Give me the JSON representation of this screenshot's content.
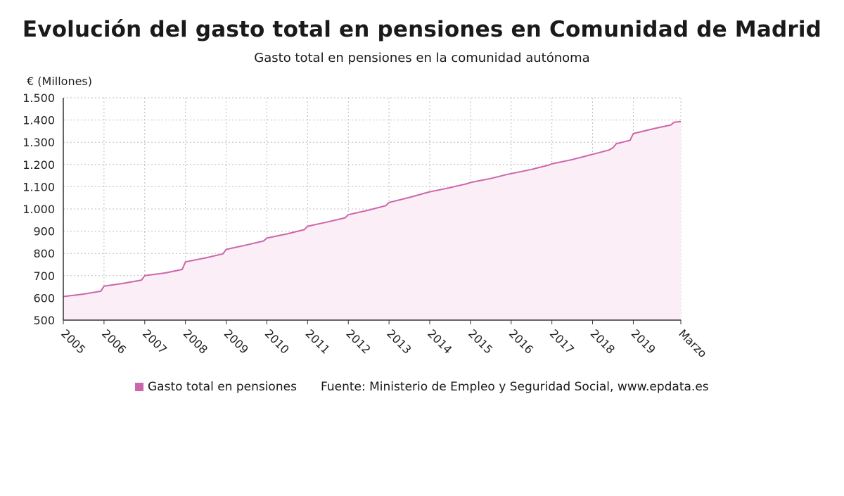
{
  "chart_data": {
    "type": "area",
    "title": "Evolución del gasto total en pensiones en Comunidad de Madrid",
    "subtitle": "Gasto total en pensiones en la comunidad autónoma",
    "ylabel": "€ (Millones)",
    "ylim": [
      500,
      1500
    ],
    "yticks": [
      500,
      600,
      700,
      800,
      900,
      1000,
      1100,
      1200,
      1300,
      1400,
      1500
    ],
    "ytick_labels": [
      "500",
      "600",
      "700",
      "800",
      "900",
      "1.000",
      "1.100",
      "1.200",
      "1.300",
      "1.400",
      "1.500"
    ],
    "xticks": [
      2005,
      2006,
      2007,
      2008,
      2009,
      2010,
      2011,
      2012,
      2013,
      2014,
      2015,
      2016,
      2017,
      2018,
      2019,
      2020.167
    ],
    "xtick_labels": [
      "2005",
      "2006",
      "2007",
      "2008",
      "2009",
      "2010",
      "2011",
      "2012",
      "2013",
      "2014",
      "2015",
      "2016",
      "2017",
      "2018",
      "2019",
      "Marzo"
    ],
    "xlim": [
      2005,
      2020.167
    ],
    "grid": true,
    "color": "#cc66aa",
    "fill_color": "#fbeef6",
    "series": [
      {
        "name": "Gasto total en pensiones",
        "points": [
          [
            2005.0,
            606
          ],
          [
            2005.5,
            617
          ],
          [
            2005.92,
            630
          ],
          [
            2006.0,
            653
          ],
          [
            2006.5,
            666
          ],
          [
            2006.92,
            680
          ],
          [
            2007.0,
            700
          ],
          [
            2007.5,
            712
          ],
          [
            2007.92,
            728
          ],
          [
            2008.0,
            762
          ],
          [
            2008.5,
            780
          ],
          [
            2008.92,
            798
          ],
          [
            2009.0,
            818
          ],
          [
            2009.5,
            838
          ],
          [
            2009.92,
            856
          ],
          [
            2010.0,
            869
          ],
          [
            2010.5,
            888
          ],
          [
            2010.92,
            907
          ],
          [
            2011.0,
            922
          ],
          [
            2011.5,
            942
          ],
          [
            2011.92,
            960
          ],
          [
            2012.0,
            974
          ],
          [
            2012.5,
            995
          ],
          [
            2012.92,
            1015
          ],
          [
            2013.0,
            1029
          ],
          [
            2013.5,
            1052
          ],
          [
            2013.92,
            1073
          ],
          [
            2014.0,
            1077
          ],
          [
            2014.5,
            1096
          ],
          [
            2014.92,
            1114
          ],
          [
            2015.0,
            1119
          ],
          [
            2015.5,
            1137
          ],
          [
            2015.92,
            1156
          ],
          [
            2016.0,
            1159
          ],
          [
            2016.5,
            1178
          ],
          [
            2016.92,
            1197
          ],
          [
            2017.0,
            1203
          ],
          [
            2017.5,
            1222
          ],
          [
            2017.92,
            1242
          ],
          [
            2018.0,
            1246
          ],
          [
            2018.4,
            1265
          ],
          [
            2018.5,
            1275
          ],
          [
            2018.58,
            1293
          ],
          [
            2018.92,
            1309
          ],
          [
            2019.0,
            1339
          ],
          [
            2019.5,
            1361
          ],
          [
            2019.92,
            1378
          ],
          [
            2020.0,
            1390
          ],
          [
            2020.167,
            1393
          ]
        ]
      }
    ],
    "legend_position": "bottom",
    "source": "Fuente: Ministerio de Empleo y Seguridad Social, www.epdata.es"
  }
}
